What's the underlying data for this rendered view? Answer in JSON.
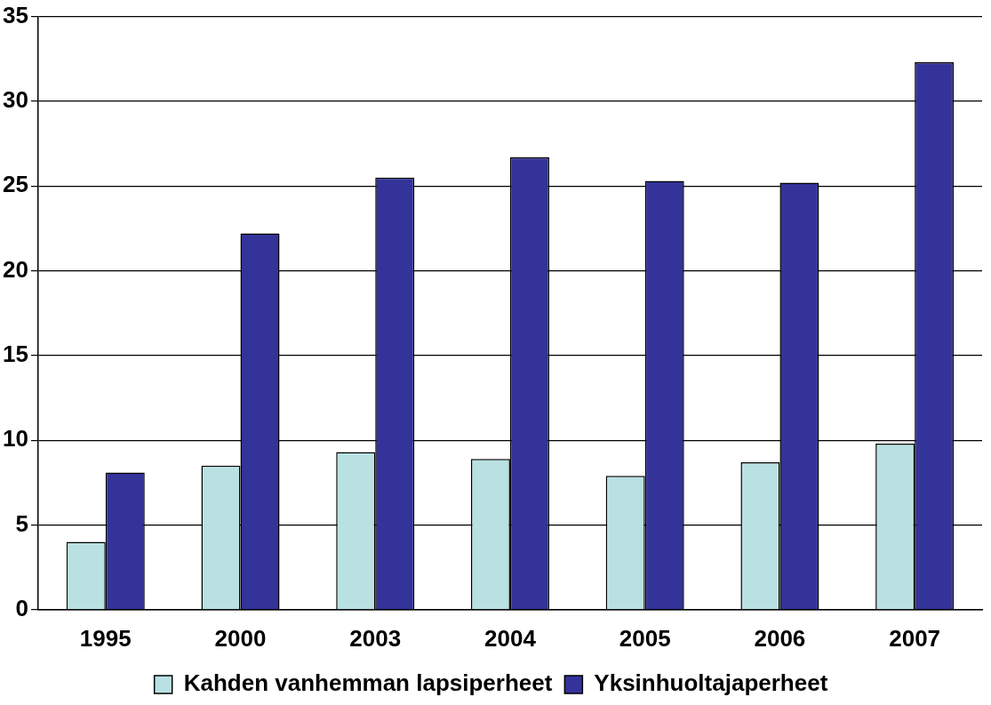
{
  "chart_data": {
    "type": "bar",
    "categories": [
      "1995",
      "2000",
      "2003",
      "2004",
      "2005",
      "2006",
      "2007"
    ],
    "series": [
      {
        "name": "Kahden vanhemman lapsiperheet",
        "color": "#b9e1e2",
        "values": [
          4.0,
          8.5,
          9.3,
          8.9,
          7.9,
          8.7,
          9.8
        ]
      },
      {
        "name": "Yksinhuoltajaperheet",
        "color": "#333399",
        "values": [
          8.1,
          22.2,
          25.5,
          26.7,
          25.3,
          25.2,
          32.3
        ]
      }
    ],
    "ylim": [
      0,
      35
    ],
    "yticks": [
      0,
      5,
      10,
      15,
      20,
      25,
      30,
      35
    ],
    "grid": "y",
    "legend": "bottom"
  }
}
